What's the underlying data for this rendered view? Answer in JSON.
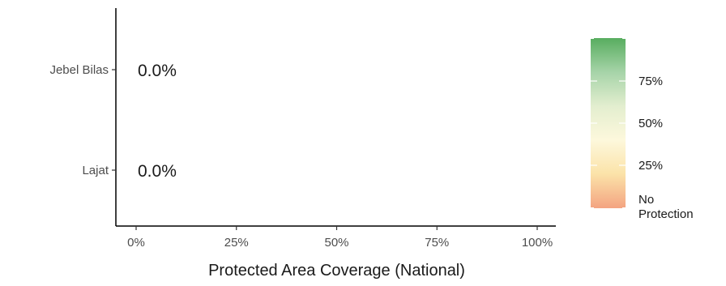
{
  "chart_data": {
    "type": "bar",
    "orientation": "horizontal",
    "categories": [
      "Jebel Bilas",
      "Lajat"
    ],
    "values": [
      0.0,
      0.0
    ],
    "data_labels": [
      "0.0%",
      "0.0%"
    ],
    "xlabel": "Protected Area Coverage (National)",
    "ylabel": "",
    "xlim": [
      0,
      100
    ],
    "x_ticks": [
      0,
      25,
      50,
      75,
      100
    ],
    "x_tick_labels": [
      "0%",
      "25%",
      "50%",
      "75%",
      "100%"
    ],
    "grid": false,
    "legend": {
      "type": "colorbar",
      "placement": "right",
      "range": [
        0,
        100
      ],
      "ticks": [
        0,
        25,
        50,
        75
      ],
      "tick_labels": [
        "No Protection",
        "25%",
        "50%",
        "75%"
      ],
      "colors": [
        "#f4a582",
        "#fbe3a9",
        "#fdf8dc",
        "#e3eecf",
        "#a7d4a9",
        "#5aae61"
      ]
    }
  }
}
